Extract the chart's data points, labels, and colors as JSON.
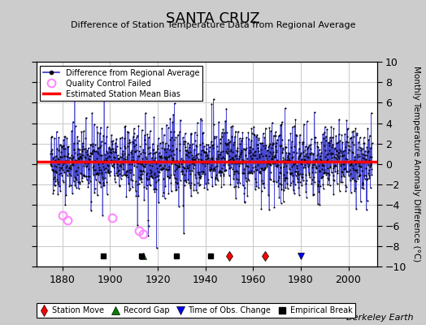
{
  "title": "SANTA CRUZ",
  "subtitle": "Difference of Station Temperature Data from Regional Average",
  "ylabel": "Monthly Temperature Anomaly Difference (°C)",
  "xlabel_credit": "Berkeley Earth",
  "xlim": [
    1869,
    2012
  ],
  "ylim": [
    -10,
    10
  ],
  "xticks": [
    1880,
    1900,
    1920,
    1940,
    1960,
    1980,
    2000
  ],
  "yticks": [
    -10,
    -8,
    -6,
    -4,
    -2,
    0,
    2,
    4,
    6,
    8,
    10
  ],
  "bias_value": 0.2,
  "bias_color": "#ff0000",
  "line_color": "#3333cc",
  "dot_color": "#000000",
  "qc_color": "#ff88ff",
  "fig_bg_color": "#cccccc",
  "plot_bg_color": "#ffffff",
  "grid_color": "#cccccc",
  "qc_failed_years": [
    1880,
    1882,
    1901,
    1912,
    1914
  ],
  "qc_failed_values": [
    -5.0,
    -5.5,
    -5.2,
    -6.5,
    -6.8
  ],
  "station_move_years": [
    1950,
    1965
  ],
  "record_gap_years": [
    1914
  ],
  "obs_change_years": [
    1980
  ],
  "empirical_break_years": [
    1897,
    1913,
    1928,
    1942
  ],
  "start_year": 1875,
  "end_year": 2010,
  "seed": 42,
  "noise_std": 1.6,
  "deep_spike_year": 1916,
  "deep_spike_value": -7.0
}
